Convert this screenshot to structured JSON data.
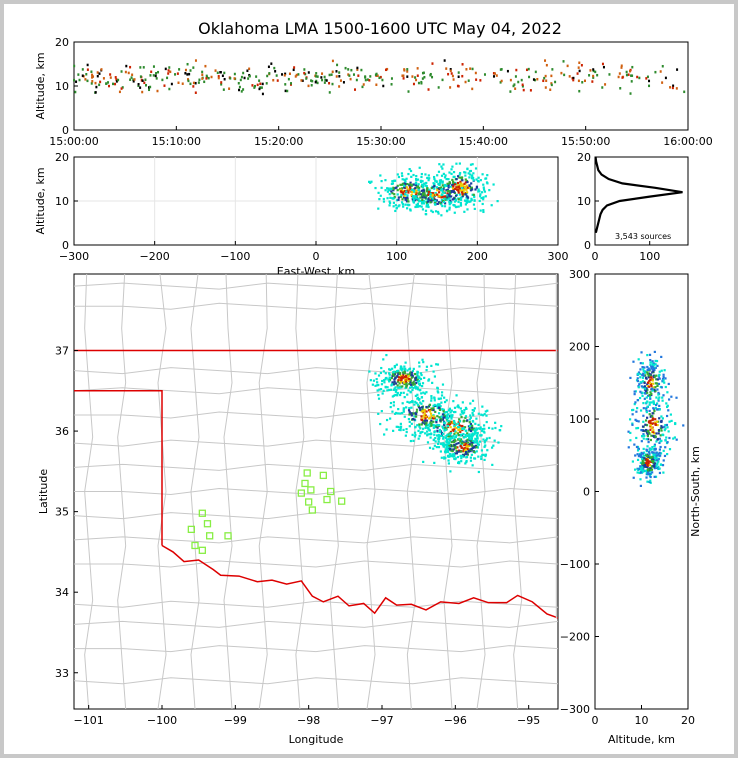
{
  "title": "Oklahoma LMA 1500-1600 UTC May 04, 2022",
  "colors": {
    "state_line": "#dd0000",
    "county_line": "#c8c8c8",
    "station": "#88ee44",
    "early_source": "#00e5d0",
    "mid_source": "#1a3a9c",
    "late_source": "#cc2200",
    "hist": "#000000"
  },
  "chart_data": [
    {
      "id": "alt_time",
      "type": "scatter",
      "xlabel": "",
      "ylabel": "Altitude, km",
      "x_ticks": [
        "15:00:00",
        "15:10:00",
        "15:20:00",
        "15:30:00",
        "15:40:00",
        "15:50:00",
        "16:00:00"
      ],
      "ylim": [
        0,
        20
      ],
      "y_ticks": [
        0,
        10,
        20
      ],
      "band_km": [
        9,
        15
      ]
    },
    {
      "id": "alt_ew",
      "type": "scatter",
      "xlabel": "East-West, km",
      "ylabel": "Altitude, km",
      "xlim": [
        -300,
        300
      ],
      "x_ticks": [
        -300,
        -200,
        -100,
        0,
        100,
        200,
        300
      ],
      "ylim": [
        0,
        20
      ],
      "y_ticks": [
        0,
        10,
        20
      ],
      "clusters": [
        {
          "x": 115,
          "y": 12,
          "spread_x": 20,
          "spread_y": 2
        },
        {
          "x": 150,
          "y": 11.5,
          "spread_x": 22,
          "spread_y": 2
        },
        {
          "x": 180,
          "y": 13,
          "spread_x": 18,
          "spread_y": 2.5
        }
      ]
    },
    {
      "id": "alt_hist",
      "type": "line",
      "xlim": [
        0,
        170
      ],
      "x_ticks": [
        0,
        100
      ],
      "ylim": [
        0,
        20
      ],
      "y_ticks": [
        0,
        10,
        20
      ],
      "annotation": "3,543 sources",
      "counts": [
        {
          "alt": 3,
          "n": 2
        },
        {
          "alt": 4,
          "n": 4
        },
        {
          "alt": 5,
          "n": 6
        },
        {
          "alt": 6,
          "n": 8
        },
        {
          "alt": 7,
          "n": 10
        },
        {
          "alt": 8,
          "n": 14
        },
        {
          "alt": 9,
          "n": 22
        },
        {
          "alt": 10,
          "n": 45
        },
        {
          "alt": 11,
          "n": 100
        },
        {
          "alt": 12,
          "n": 160
        },
        {
          "alt": 13,
          "n": 110
        },
        {
          "alt": 14,
          "n": 50
        },
        {
          "alt": 15,
          "n": 25
        },
        {
          "alt": 16,
          "n": 12
        },
        {
          "alt": 17,
          "n": 6
        },
        {
          "alt": 18,
          "n": 4
        },
        {
          "alt": 19,
          "n": 2
        },
        {
          "alt": 20,
          "n": 1
        }
      ]
    },
    {
      "id": "plan_view",
      "type": "scatter",
      "xlabel": "Longitude",
      "ylabel": "Latitude",
      "xlim": [
        -101.2,
        -94.6
      ],
      "ylim": [
        32.55,
        37.95
      ],
      "x_ticks": [
        -101,
        -100,
        -99,
        -98,
        -97,
        -96,
        -95
      ],
      "y_ticks": [
        33,
        34,
        35,
        36,
        37
      ],
      "clusters": [
        {
          "lon": -96.7,
          "lat": 36.65,
          "spread": 0.15
        },
        {
          "lon": -96.0,
          "lat": 36.05,
          "spread": 0.2
        },
        {
          "lon": -96.4,
          "lat": 36.2,
          "spread": 0.2
        },
        {
          "lon": -95.9,
          "lat": 35.8,
          "spread": 0.15
        }
      ],
      "stations": [
        [
          -99.45,
          34.98
        ],
        [
          -99.38,
          34.85
        ],
        [
          -99.6,
          34.78
        ],
        [
          -99.35,
          34.7
        ],
        [
          -99.55,
          34.58
        ],
        [
          -99.45,
          34.52
        ],
        [
          -99.1,
          34.7
        ],
        [
          -98.02,
          35.48
        ],
        [
          -98.05,
          35.35
        ],
        [
          -98.1,
          35.23
        ],
        [
          -97.97,
          35.27
        ],
        [
          -97.8,
          35.45
        ],
        [
          -98.0,
          35.12
        ],
        [
          -97.7,
          35.25
        ],
        [
          -97.75,
          35.15
        ],
        [
          -97.95,
          35.02
        ],
        [
          -97.55,
          35.13
        ]
      ]
    },
    {
      "id": "ns_alt",
      "type": "scatter",
      "xlabel": "Altitude, km",
      "ylabel": "North-South, km",
      "xlim": [
        0,
        20
      ],
      "x_ticks": [
        0,
        10,
        20
      ],
      "ylim": [
        -300,
        300
      ],
      "y_ticks": [
        -300,
        -200,
        -100,
        0,
        100,
        200,
        300
      ],
      "clusters": [
        {
          "alt": 12,
          "ns": 150,
          "spread_a": 1.6,
          "spread_n": 18
        },
        {
          "alt": 12.5,
          "ns": 90,
          "spread_a": 2.2,
          "spread_n": 22
        },
        {
          "alt": 11.5,
          "ns": 40,
          "spread_a": 1.5,
          "spread_n": 12
        }
      ]
    }
  ]
}
